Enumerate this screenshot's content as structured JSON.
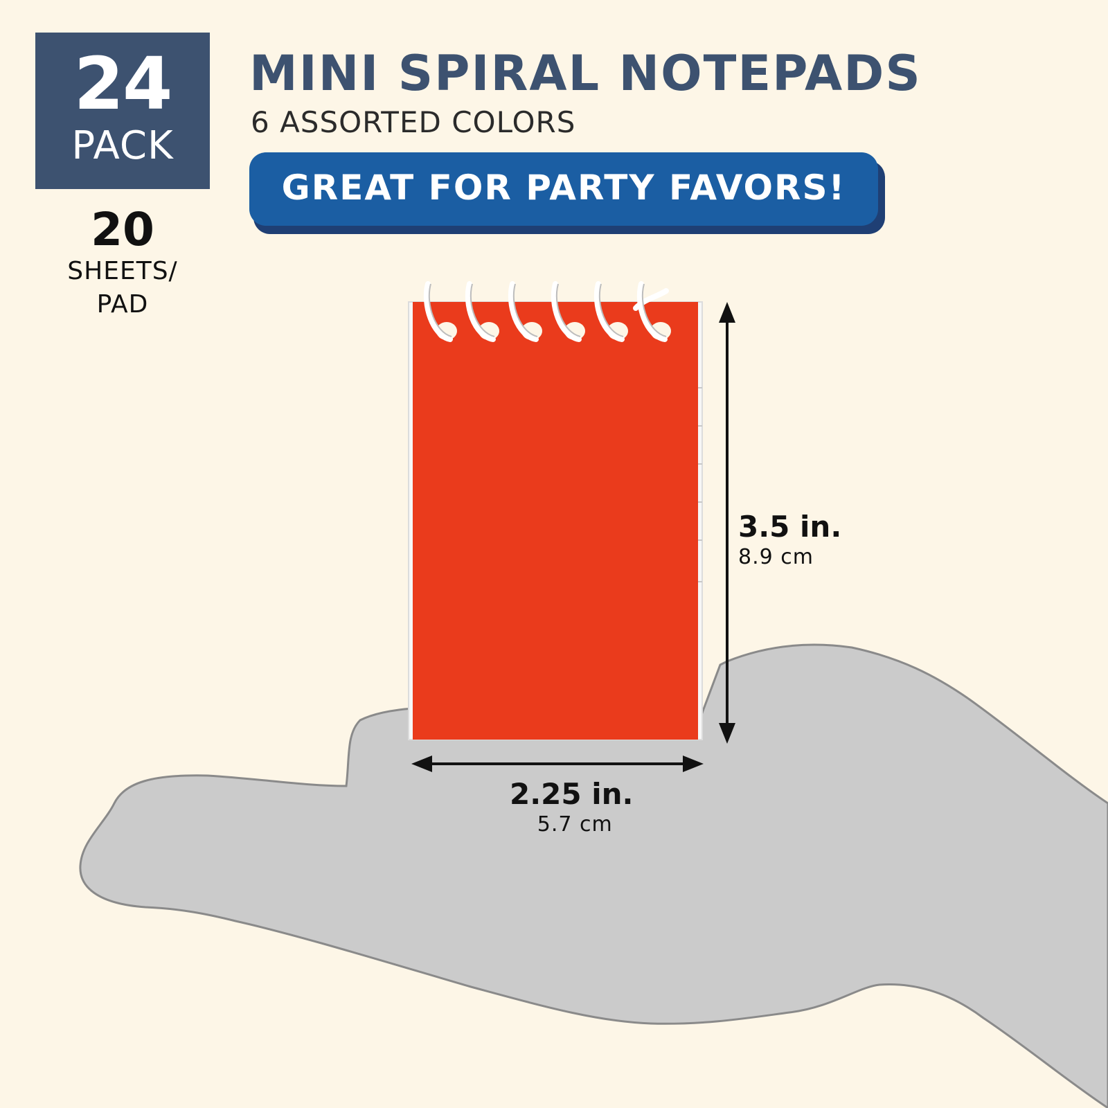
{
  "pack": {
    "count": "24",
    "label": "PACK"
  },
  "sheets": {
    "count": "20",
    "label_line1": "SHEETS/",
    "label_line2": "PAD"
  },
  "title": "MINI SPIRAL NOTEPADS",
  "subtitle": "6 ASSORTED COLORS",
  "banner": "GREAT FOR PARTY FAVORS!",
  "dimensions": {
    "height": {
      "imperial": "3.5 in.",
      "metric": "8.9 cm"
    },
    "width": {
      "imperial": "2.25 in.",
      "metric": "5.7 cm"
    }
  },
  "colors": {
    "background": "#fdf6e7",
    "badge": "#3d5270",
    "banner": "#1b5ea3",
    "notepad_cover": "#ea3b1c",
    "hand_silhouette": "#cbcbcb"
  }
}
